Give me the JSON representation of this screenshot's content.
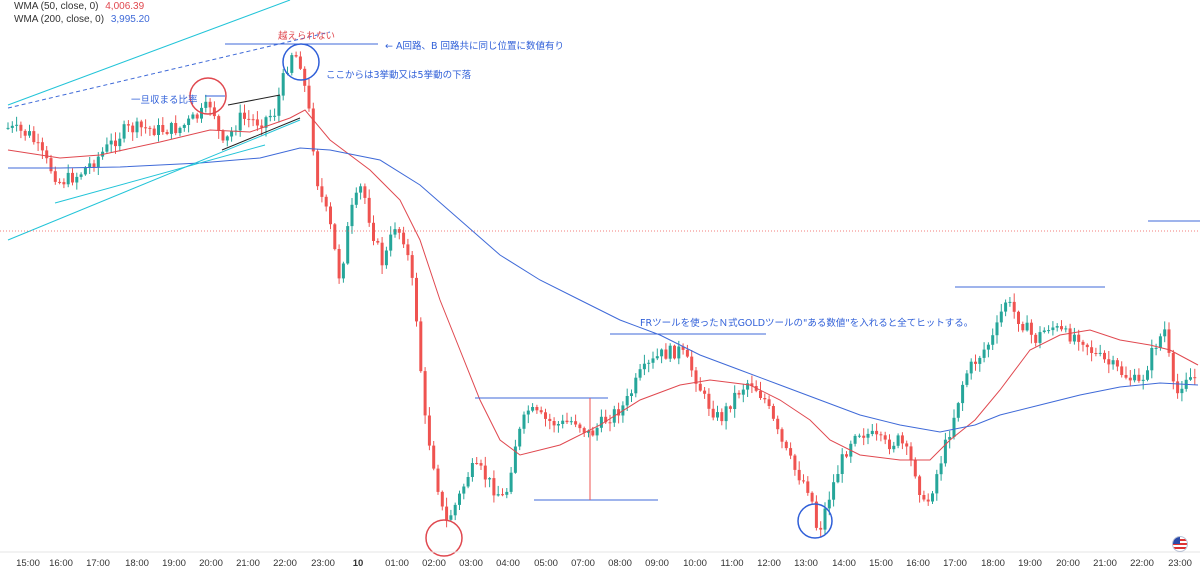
{
  "legend": {
    "wma50_label": "WMA (50, close, 0)",
    "wma50_value": "4,006.39",
    "wma200_label": "WMA (200, close, 0)",
    "wma200_value": "3,995.20"
  },
  "annotations": {
    "cannot_exceed": "越えられない",
    "ab_route": "← A回路、B 回路共に同じ位置に数値有り",
    "three_five_wave": "ここからは3挙動又は5挙動の下落",
    "temp_ratio": "一旦収まる比率",
    "fr_tool": "FRツールを使ったＮ式GOLDツールの\"ある数値\"を入れると全てヒットする。"
  },
  "chart_data": {
    "type": "candlestick",
    "title": "",
    "xlabel": "",
    "ylabel": "",
    "x_ticks": [
      "15:00",
      "16:00",
      "17:00",
      "18:00",
      "19:00",
      "20:00",
      "21:00",
      "22:00",
      "23:00",
      "10",
      "01:00",
      "02:00",
      "03:00",
      "04:00",
      "05:00",
      "07:00",
      "08:00",
      "09:00",
      "10:00",
      "11:00",
      "12:00",
      "13:00",
      "14:00",
      "15:00",
      "16:00",
      "17:00",
      "18:00",
      "19:00",
      "20:00",
      "21:00",
      "22:00",
      "23:00"
    ],
    "series": [
      {
        "name": "WMA (50, close, 0)",
        "color": "#e0484f",
        "last": 4006.39
      },
      {
        "name": "WMA (200, close, 0)",
        "color": "#3f6ad8",
        "last": 3995.2
      }
    ],
    "colors": {
      "up": "#26a69a",
      "down": "#ef5350",
      "trend": "#22c4d8",
      "hline": "#3f6ad8",
      "circle_red": "#e0484f",
      "circle_blue": "#2f5fd8"
    }
  }
}
